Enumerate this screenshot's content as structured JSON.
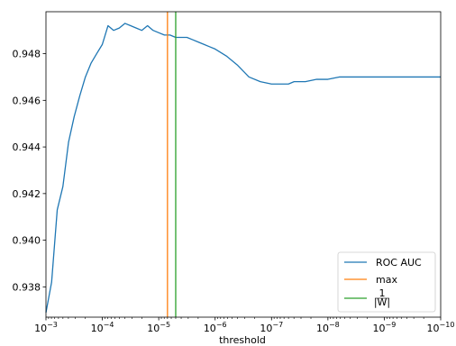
{
  "chart_data": {
    "type": "line",
    "xlabel": "threshold",
    "ylabel": "",
    "x_scale": "log",
    "x_reversed": true,
    "xlim": [
      0.001,
      1e-10
    ],
    "ylim": [
      0.9367,
      0.9498
    ],
    "x_tick_values": [
      0.001,
      0.0001,
      1e-05,
      1e-06,
      1e-07,
      1e-08,
      1e-09,
      1e-10
    ],
    "x_tick_labels": [
      {
        "base": "10",
        "exp": "−3"
      },
      {
        "base": "10",
        "exp": "−4"
      },
      {
        "base": "10",
        "exp": "−5"
      },
      {
        "base": "10",
        "exp": "−6"
      },
      {
        "base": "10",
        "exp": "−7"
      },
      {
        "base": "10",
        "exp": "−8"
      },
      {
        "base": "10",
        "exp": "−9"
      },
      {
        "base": "10",
        "exp": "−10"
      }
    ],
    "y_ticks": [
      0.938,
      0.94,
      0.942,
      0.944,
      0.946,
      0.948
    ],
    "y_tick_labels": [
      "0.938",
      "0.940",
      "0.942",
      "0.944",
      "0.946",
      "0.948"
    ],
    "grid": false,
    "legend_position": "lower-right",
    "series": [
      {
        "name": "ROC AUC",
        "color": "#1f77b4",
        "x": [
          0.001,
          0.000794,
          0.000631,
          0.000501,
          0.000398,
          0.000316,
          0.000251,
          0.0002,
          0.000158,
          0.000126,
          0.0001,
          7.94e-05,
          6.31e-05,
          5.01e-05,
          3.98e-05,
          3.16e-05,
          2.51e-05,
          2e-05,
          1.58e-05,
          1.26e-05,
          1e-05,
          7.94e-06,
          6.31e-06,
          5.01e-06,
          3.98e-06,
          3.16e-06,
          2.51e-06,
          2e-06,
          1.58e-06,
          1.26e-06,
          1e-06,
          6.31e-07,
          3.98e-07,
          2.51e-07,
          1.58e-07,
          1e-07,
          7.94e-08,
          6.31e-08,
          5.01e-08,
          3.98e-08,
          3.16e-08,
          2.51e-08,
          1.58e-08,
          1e-08,
          6.31e-09,
          3.98e-09,
          2.51e-09,
          1.58e-09,
          1e-09,
          6.31e-10,
          3.98e-10,
          2.51e-10,
          1.58e-10,
          1e-10
        ],
        "y": [
          0.9369,
          0.9382,
          0.9413,
          0.9423,
          0.9442,
          0.9453,
          0.9462,
          0.947,
          0.9476,
          0.948,
          0.9484,
          0.9492,
          0.949,
          0.9491,
          0.9493,
          0.9492,
          0.9491,
          0.949,
          0.9492,
          0.949,
          0.9489,
          0.9488,
          0.9488,
          0.9487,
          0.9487,
          0.9487,
          0.9486,
          0.9485,
          0.9484,
          0.9483,
          0.9482,
          0.9479,
          0.9475,
          0.947,
          0.9468,
          0.9467,
          0.9467,
          0.9467,
          0.9467,
          0.9468,
          0.9468,
          0.9468,
          0.9469,
          0.9469,
          0.947,
          0.947,
          0.947,
          0.947,
          0.947,
          0.947,
          0.947,
          0.947,
          0.947,
          0.947
        ]
      }
    ],
    "vlines": [
      {
        "name": "max",
        "x": 7e-06,
        "color": "#ff7f0e"
      },
      {
        "name": "1/|W|",
        "label_num": "1",
        "label_den": "|W|",
        "x": 5e-06,
        "color": "#2ca02c"
      }
    ]
  }
}
